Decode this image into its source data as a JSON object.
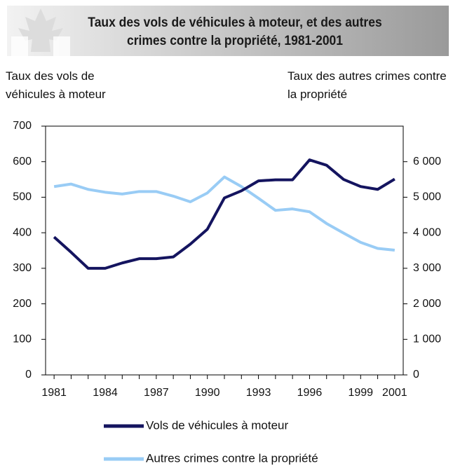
{
  "chart_data": {
    "type": "line",
    "title": "Taux des vols de véhicules à moteur, et des autres crimes contre la propriété, 1981-2001",
    "ylabel": "Taux des vols de véhicules à moteur",
    "y2label": "Taux des autres crimes contre la propriété",
    "x": [
      1981,
      1982,
      1983,
      1984,
      1985,
      1986,
      1987,
      1988,
      1989,
      1990,
      1991,
      1992,
      1993,
      1994,
      1995,
      1996,
      1997,
      1998,
      1999,
      2000,
      2001
    ],
    "xlim": [
      1980.5,
      2001.5
    ],
    "xticks": [
      1981,
      1984,
      1987,
      1990,
      1993,
      1996,
      1999,
      2001
    ],
    "ylim": [
      0,
      700
    ],
    "yticks": [
      0,
      100,
      200,
      300,
      400,
      500,
      600,
      700
    ],
    "y2lim": [
      0,
      7000
    ],
    "y2ticks": [
      0,
      {
        "value": 1000,
        "label": "1 000"
      },
      {
        "value": 2000,
        "label": "2 000"
      },
      {
        "value": 3000,
        "label": "3 000"
      },
      {
        "value": 4000,
        "label": "4 000"
      },
      {
        "value": 5000,
        "label": "5 000"
      },
      {
        "value": 6000,
        "label": "6 000"
      }
    ],
    "series": [
      {
        "name": "Vols de véhicules à moteur",
        "color": "#14145f",
        "values": [
          388,
          345,
          300,
          300,
          315,
          327,
          327,
          332,
          368,
          410,
          498,
          518,
          546,
          549,
          549,
          605,
          590,
          550,
          530,
          522,
          551
        ]
      },
      {
        "name": "Autres crimes contre la propriété",
        "color": "#99ccf5",
        "axis": "y2",
        "values": [
          5300,
          5370,
          5220,
          5140,
          5090,
          5160,
          5160,
          5030,
          4870,
          5120,
          5570,
          5300,
          4970,
          4630,
          4670,
          4590,
          4260,
          3990,
          3730,
          3560,
          3510
        ]
      }
    ]
  }
}
